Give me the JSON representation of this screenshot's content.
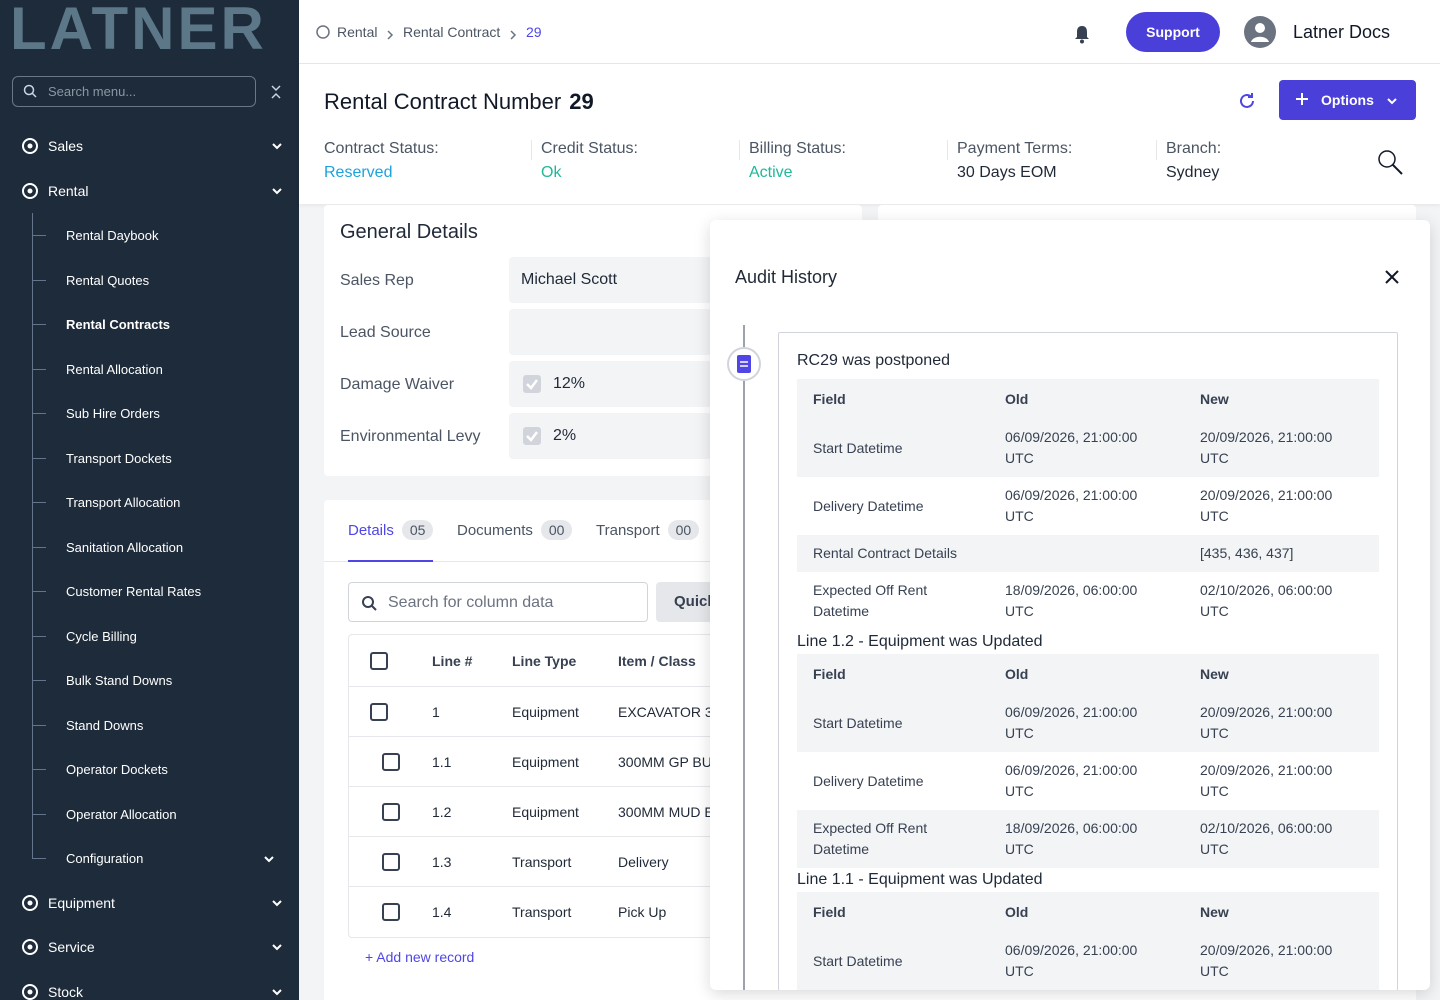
{
  "sidebar": {
    "logo": "LATNER",
    "search_placeholder": "Search menu...",
    "menu": [
      {
        "label": "Sales",
        "expandable": true
      },
      {
        "label": "Rental",
        "expandable": true,
        "children": [
          {
            "label": "Rental Daybook"
          },
          {
            "label": "Rental Quotes"
          },
          {
            "label": "Rental Contracts",
            "active": true
          },
          {
            "label": "Rental Allocation"
          },
          {
            "label": "Sub Hire Orders"
          },
          {
            "label": "Transport Dockets"
          },
          {
            "label": "Transport Allocation"
          },
          {
            "label": "Sanitation Allocation"
          },
          {
            "label": "Customer Rental Rates"
          },
          {
            "label": "Cycle Billing"
          },
          {
            "label": "Bulk Stand Downs"
          },
          {
            "label": "Stand Downs"
          },
          {
            "label": "Operator Dockets"
          },
          {
            "label": "Operator Allocation"
          },
          {
            "label": "Configuration",
            "expandable": true
          }
        ]
      },
      {
        "label": "Equipment",
        "expandable": true
      },
      {
        "label": "Service",
        "expandable": true
      },
      {
        "label": "Stock",
        "expandable": true
      }
    ]
  },
  "header": {
    "breadcrumb": [
      "Rental",
      "Rental Contract",
      "29"
    ],
    "support": "Support",
    "user": "Latner Docs"
  },
  "contract": {
    "title": "Rental Contract Number",
    "number": "29",
    "options": "Options",
    "statuses": [
      {
        "label": "Contract Status:",
        "value": "Reserved",
        "color": "#1ea2dc"
      },
      {
        "label": "Credit Status:",
        "value": "Ok",
        "color": "#1fb89a"
      },
      {
        "label": "Billing Status:",
        "value": "Active",
        "color": "#1fb89a"
      },
      {
        "label": "Payment Terms:",
        "value": "30 Days EOM",
        "color": "#1f2937"
      },
      {
        "label": "Branch:",
        "value": "Sydney",
        "color": "#1f2937"
      }
    ]
  },
  "general": {
    "title": "General Details",
    "fields": [
      {
        "label": "Sales Rep",
        "value": "Michael Scott",
        "checkbox": false
      },
      {
        "label": "Lead Source",
        "value": null,
        "checkbox": false
      },
      {
        "label": "Damage Waiver",
        "value": "12%",
        "checkbox": true
      },
      {
        "label": "Environmental Levy",
        "value": "2%",
        "checkbox": true
      }
    ]
  },
  "tabs": [
    {
      "label": "Details",
      "count": "05",
      "active": true
    },
    {
      "label": "Documents",
      "count": "00"
    },
    {
      "label": "Transport",
      "count": "00"
    }
  ],
  "grid": {
    "search_placeholder": "Search for column data",
    "quick": "Quick",
    "columns": [
      "Line #",
      "Line Type",
      "Item / Class"
    ],
    "rows": [
      {
        "cells": [
          "1",
          "Equipment",
          "EXCAVATOR 3"
        ],
        "child": false
      },
      {
        "cells": [
          "1.1",
          "Equipment",
          "300MM GP BU"
        ],
        "child": true
      },
      {
        "cells": [
          "1.2",
          "Equipment",
          "300MM MUD E"
        ],
        "child": true
      },
      {
        "cells": [
          "1.3",
          "Transport",
          "Delivery"
        ],
        "child": true
      },
      {
        "cells": [
          "1.4",
          "Transport",
          "Pick Up"
        ],
        "child": true
      }
    ],
    "add": "+ Add new record"
  },
  "audit": {
    "title": "Audit History",
    "columns": [
      "Field",
      "Old",
      "New"
    ],
    "entries": [
      {
        "title": "RC29 was postponed",
        "rows": [
          [
            "Start Datetime",
            "06/09/2026, 21:00:00 UTC",
            "20/09/2026, 21:00:00 UTC"
          ],
          [
            "Delivery Datetime",
            "06/09/2026, 21:00:00 UTC",
            "20/09/2026, 21:00:00 UTC"
          ],
          [
            "Rental Contract Details",
            null,
            "[435, 436, 437]"
          ],
          [
            "Expected Off Rent Datetime",
            "18/09/2026, 06:00:00 UTC",
            "02/10/2026, 06:00:00 UTC"
          ]
        ]
      },
      {
        "title": "Line 1.2 - Equipment was Updated",
        "rows": [
          [
            "Start Datetime",
            "06/09/2026, 21:00:00 UTC",
            "20/09/2026, 21:00:00 UTC"
          ],
          [
            "Delivery Datetime",
            "06/09/2026, 21:00:00 UTC",
            "20/09/2026, 21:00:00 UTC"
          ],
          [
            "Expected Off Rent Datetime",
            "18/09/2026, 06:00:00 UTC",
            "02/10/2026, 06:00:00 UTC"
          ]
        ]
      },
      {
        "title": "Line 1.1 - Equipment was Updated",
        "rows": [
          [
            "Start Datetime",
            "06/09/2026, 21:00:00 UTC",
            "20/09/2026, 21:00:00 UTC"
          ]
        ]
      }
    ]
  }
}
